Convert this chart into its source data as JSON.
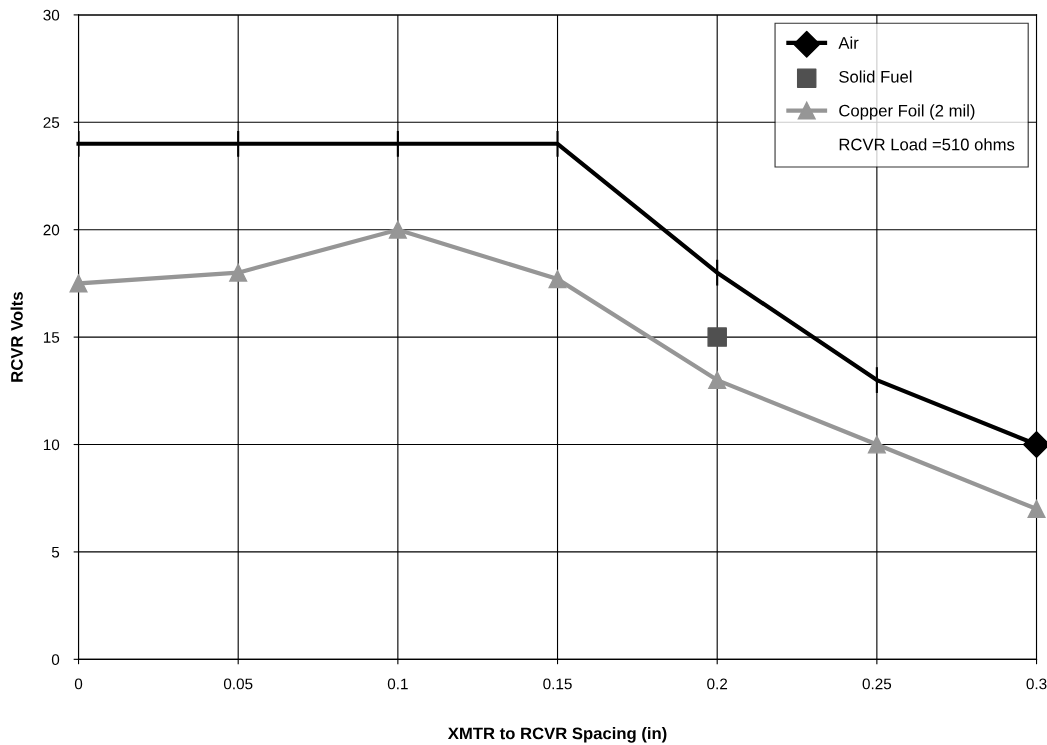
{
  "chart_data": {
    "type": "line",
    "xlabel": "XMTR to RCVR Spacing (in)",
    "ylabel": "RCVR Volts",
    "x": [
      0,
      0.05,
      0.1,
      0.15,
      0.2,
      0.25,
      0.3
    ],
    "series": [
      {
        "name": "Air",
        "color": "#000000",
        "marker": "none",
        "values": [
          24,
          24,
          24,
          24,
          18,
          13,
          10
        ],
        "errors": [
          0.6,
          0.6,
          0.6,
          0.6,
          0.6,
          0.6,
          null
        ]
      },
      {
        "type": "scatter",
        "color": "#000000",
        "marker": "diamond",
        "x": [
          0.3
        ],
        "values": [
          10
        ]
      },
      {
        "name": "Solid Fuel",
        "type": "scatter",
        "color": "#505050",
        "marker": "square",
        "x": [
          0.2
        ],
        "values": [
          15
        ]
      },
      {
        "name": "Copper Foil (2 mil)",
        "color": "#969696",
        "marker": "triangle",
        "values": [
          17.5,
          18,
          20,
          17.7,
          13,
          10,
          7
        ]
      }
    ],
    "annotations": [
      "RCVR Load =510 ohms"
    ],
    "xlim": [
      0,
      0.3
    ],
    "xticks": [
      0,
      0.05,
      0.1,
      0.15,
      0.2,
      0.25,
      0.3
    ],
    "ylim": [
      0,
      30
    ],
    "yticks": [
      0,
      5,
      10,
      15,
      20,
      25,
      30
    ],
    "grid": true,
    "legend": "top right"
  }
}
